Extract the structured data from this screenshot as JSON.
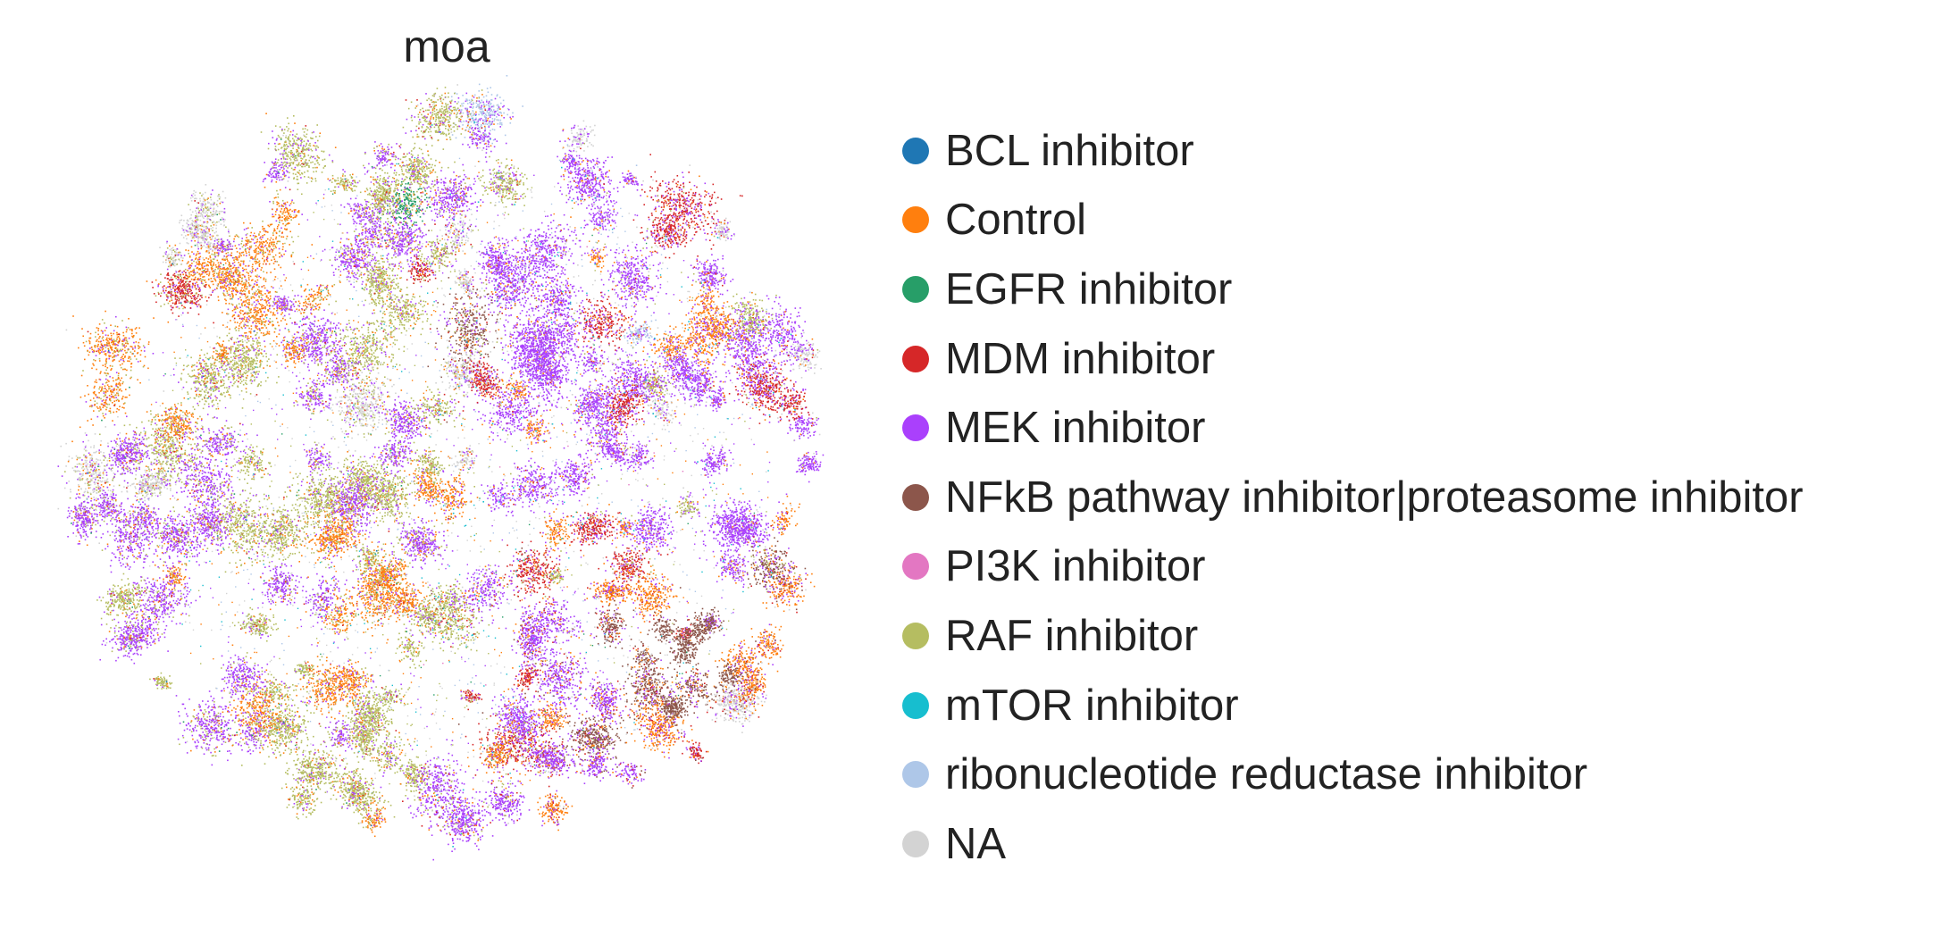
{
  "chart_data": {
    "type": "scatter",
    "title": "moa",
    "xlabel": "",
    "ylabel": "",
    "grid": false,
    "axes_visible": false,
    "legend_position": "right",
    "marker_size": "tiny",
    "categories": [
      {
        "name": "BCL inhibitor",
        "color": "#1f77b4"
      },
      {
        "name": "Control",
        "color": "#ff7f0e"
      },
      {
        "name": "EGFR inhibitor",
        "color": "#279e68"
      },
      {
        "name": "MDM inhibitor",
        "color": "#d62728"
      },
      {
        "name": "MEK inhibitor",
        "color": "#aa40fc"
      },
      {
        "name": "NFkB pathway inhibitor|proteasome inhibitor",
        "color": "#8c564b"
      },
      {
        "name": "PI3K inhibitor",
        "color": "#e377c2"
      },
      {
        "name": "RAF inhibitor",
        "color": "#b5bd61"
      },
      {
        "name": "mTOR inhibitor",
        "color": "#17becf"
      },
      {
        "name": "ribonucleotide reductase inhibitor",
        "color": "#aec7e8"
      },
      {
        "name": "NA",
        "color": "#d3d3d3"
      }
    ]
  }
}
